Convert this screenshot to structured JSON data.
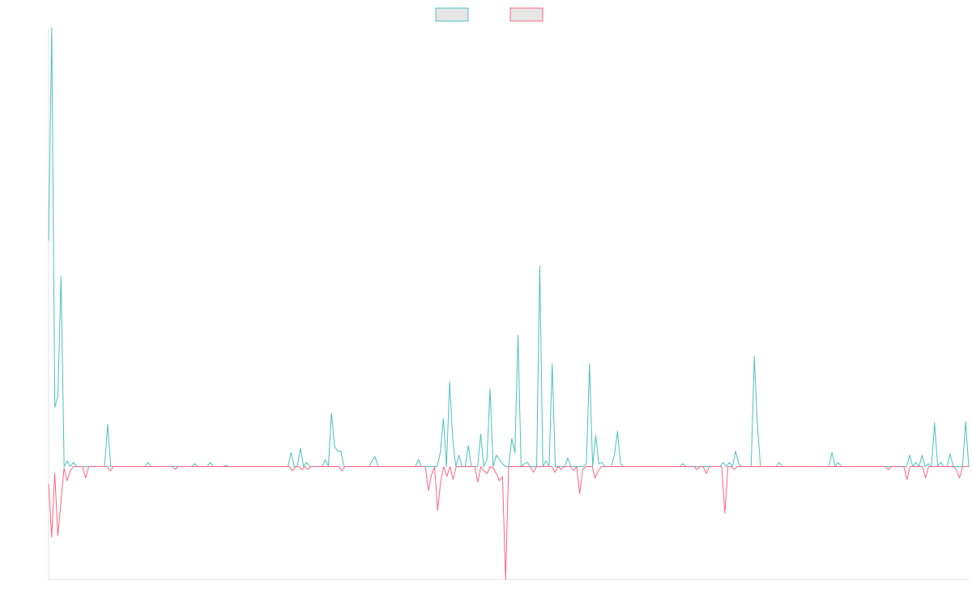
{
  "chart_data": {
    "type": "line",
    "title": "",
    "xlabel": "",
    "ylabel": "",
    "ylim": [
      -0.8,
      3.1
    ],
    "grid": false,
    "legend_position": "top-center",
    "legend_fill": "#e6e6e6",
    "series": [
      {
        "color": "#4bc0c0",
        "values": [
          1.6,
          3.11,
          0.42,
          0.5,
          1.35,
          0.0,
          0.04,
          0.0,
          0.03,
          0.0,
          0.0,
          0.0,
          0.0,
          0.0,
          0.0,
          0.0,
          0.0,
          0.0,
          0.0,
          0.3,
          0.0,
          0.0,
          0.0,
          0.0,
          0.0,
          0.0,
          0.0,
          0.0,
          0.0,
          0.0,
          0.0,
          0.0,
          0.03,
          0.0,
          0.0,
          0.0,
          0.0,
          0.0,
          0.0,
          0.0,
          0.0,
          0.0,
          0.0,
          0.0,
          0.0,
          0.0,
          0.0,
          0.02,
          0.0,
          0.0,
          0.0,
          0.0,
          0.03,
          0.0,
          0.0,
          0.0,
          0.0,
          0.01,
          0.0,
          0.0,
          0.0,
          0.0,
          0.0,
          0.0,
          0.0,
          0.0,
          0.0,
          0.0,
          0.0,
          0.0,
          0.0,
          0.0,
          0.0,
          0.0,
          0.0,
          0.0,
          0.0,
          0.0,
          0.1,
          0.0,
          0.0,
          0.13,
          0.0,
          0.03,
          0.0,
          0.0,
          0.0,
          0.0,
          0.0,
          0.05,
          0.0,
          0.38,
          0.14,
          0.11,
          0.11,
          0.0,
          0.0,
          0.0,
          0.0,
          0.0,
          0.0,
          0.0,
          0.0,
          0.0,
          0.04,
          0.07,
          0.0,
          0.0,
          0.0,
          0.0,
          0.0,
          0.0,
          0.0,
          0.0,
          0.0,
          0.0,
          0.0,
          0.0,
          0.0,
          0.05,
          0.0,
          0.0,
          0.0,
          0.0,
          0.0,
          0.0,
          0.1,
          0.34,
          0.0,
          0.6,
          0.2,
          0.0,
          0.08,
          0.0,
          0.0,
          0.15,
          0.0,
          0.0,
          0.0,
          0.23,
          0.0,
          0.05,
          0.55,
          0.0,
          0.08,
          0.05,
          0.02,
          0.0,
          0.0,
          0.2,
          0.1,
          0.93,
          0.0,
          0.02,
          0.03,
          0.0,
          0.0,
          0.0,
          1.42,
          0.0,
          0.04,
          0.0,
          0.73,
          0.0,
          0.0,
          0.0,
          0.0,
          0.06,
          0.0,
          0.0,
          0.0,
          0.0,
          0.0,
          0.02,
          0.73,
          0.0,
          0.22,
          0.02,
          0.03,
          0.0,
          0.0,
          0.0,
          0.08,
          0.25,
          0.02,
          0.0,
          0.0,
          0.0,
          0.0,
          0.0,
          0.0,
          0.0,
          0.0,
          0.0,
          0.0,
          0.0,
          0.0,
          0.0,
          0.0,
          0.0,
          0.0,
          0.0,
          0.0,
          0.0,
          0.02,
          0.0,
          0.0,
          0.0,
          0.0,
          0.0,
          0.0,
          0.0,
          0.0,
          0.0,
          0.0,
          0.0,
          0.0,
          0.03,
          0.0,
          0.03,
          0.0,
          0.11,
          0.02,
          0.0,
          0.0,
          0.0,
          0.0,
          0.78,
          0.3,
          0.0,
          0.0,
          0.0,
          0.0,
          0.0,
          0.0,
          0.03,
          0.0,
          0.0,
          0.0,
          0.0,
          0.0,
          0.0,
          0.0,
          0.0,
          0.0,
          0.0,
          0.0,
          0.0,
          0.0,
          0.0,
          0.0,
          0.0,
          0.1,
          0.0,
          0.03,
          0.0,
          0.0,
          0.0,
          0.0,
          0.0,
          0.0,
          0.0,
          0.0,
          0.0,
          0.0,
          0.0,
          0.0,
          0.0,
          0.0,
          0.0,
          0.0,
          0.0,
          0.0,
          0.0,
          0.0,
          0.0,
          0.0,
          0.08,
          0.0,
          0.03,
          0.0,
          0.08,
          0.0,
          0.02,
          0.0,
          0.31,
          0.0,
          0.03,
          0.0,
          0.0,
          0.09,
          0.0,
          0.0,
          0.0,
          0.0,
          0.32,
          0.0
        ]
      },
      {
        "color": "#ff6384",
        "values": [
          -0.12,
          -0.5,
          -0.05,
          -0.49,
          -0.25,
          -0.01,
          -0.1,
          -0.03,
          0.0,
          0.0,
          0.0,
          0.0,
          -0.08,
          0.0,
          0.0,
          0.0,
          0.0,
          0.0,
          0.0,
          0.0,
          -0.03,
          0.0,
          0.0,
          0.0,
          0.0,
          0.0,
          0.0,
          0.0,
          0.0,
          0.0,
          0.0,
          0.0,
          0.0,
          0.0,
          0.0,
          0.0,
          0.0,
          0.0,
          0.0,
          0.0,
          0.0,
          -0.02,
          0.0,
          0.0,
          0.0,
          0.0,
          0.0,
          0.0,
          0.0,
          0.0,
          0.0,
          0.0,
          0.0,
          0.0,
          0.0,
          0.0,
          0.0,
          0.0,
          0.0,
          0.0,
          0.0,
          0.0,
          0.0,
          0.0,
          0.0,
          0.0,
          0.0,
          0.0,
          0.0,
          0.0,
          0.0,
          0.0,
          0.0,
          0.0,
          0.0,
          0.0,
          0.0,
          0.0,
          0.0,
          -0.03,
          0.0,
          0.0,
          -0.02,
          0.0,
          -0.02,
          0.0,
          0.0,
          0.0,
          0.0,
          0.0,
          0.0,
          0.0,
          0.0,
          0.0,
          0.0,
          -0.03,
          0.0,
          0.0,
          0.0,
          0.0,
          0.0,
          0.0,
          0.0,
          0.0,
          0.0,
          0.0,
          0.0,
          0.0,
          0.0,
          0.0,
          0.0,
          0.0,
          0.0,
          0.0,
          0.0,
          0.0,
          0.0,
          0.0,
          0.0,
          0.0,
          0.0,
          0.0,
          0.0,
          -0.17,
          -0.06,
          0.0,
          -0.31,
          -0.1,
          0.0,
          -0.07,
          0.0,
          -0.09,
          0.0,
          0.0,
          0.0,
          0.0,
          0.0,
          0.0,
          0.0,
          -0.11,
          0.0,
          -0.03,
          -0.05,
          0.0,
          -0.01,
          -0.05,
          -0.1,
          -0.07,
          -0.8,
          0.0,
          0.0,
          0.0,
          0.0,
          0.0,
          0.0,
          0.0,
          0.0,
          -0.04,
          0.0,
          0.0,
          0.0,
          0.0,
          0.0,
          0.0,
          -0.04,
          0.0,
          -0.02,
          0.0,
          0.0,
          0.0,
          -0.03,
          0.0,
          -0.19,
          -0.02,
          0.0,
          0.0,
          0.0,
          -0.08,
          -0.03,
          0.0,
          0.0,
          0.0,
          0.0,
          0.0,
          0.0,
          0.0,
          0.0,
          0.0,
          0.0,
          0.0,
          0.0,
          0.0,
          0.0,
          0.0,
          0.0,
          0.0,
          0.0,
          0.0,
          0.0,
          0.0,
          0.0,
          0.0,
          0.0,
          0.0,
          0.0,
          0.0,
          0.0,
          0.0,
          0.0,
          0.0,
          -0.02,
          0.0,
          0.0,
          -0.05,
          0.0,
          0.0,
          0.0,
          0.0,
          0.0,
          -0.33,
          0.0,
          0.0,
          -0.02,
          0.0,
          0.0,
          0.0,
          0.0,
          0.0,
          0.0,
          0.0,
          0.0,
          0.0,
          0.0,
          0.0,
          0.0,
          0.0,
          0.0,
          0.0,
          0.0,
          0.0,
          0.0,
          0.0,
          0.0,
          0.0,
          0.0,
          0.0,
          0.0,
          0.0,
          0.0,
          0.0,
          0.0,
          0.0,
          0.0,
          0.0,
          0.0,
          0.0,
          0.0,
          0.0,
          0.0,
          0.0,
          0.0,
          0.0,
          0.0,
          0.0,
          0.0,
          0.0,
          0.0,
          0.0,
          0.0,
          0.0,
          0.0,
          0.0,
          -0.02,
          0.0,
          0.0,
          0.0,
          0.0,
          0.0,
          -0.09,
          0.0,
          0.0,
          0.0,
          0.0,
          0.0,
          -0.08,
          0.0,
          0.0,
          0.0,
          0.0,
          0.0,
          0.0,
          0.0,
          0.0,
          0.0,
          -0.02,
          -0.08,
          0.0,
          0.0,
          0.0
        ]
      }
    ]
  }
}
